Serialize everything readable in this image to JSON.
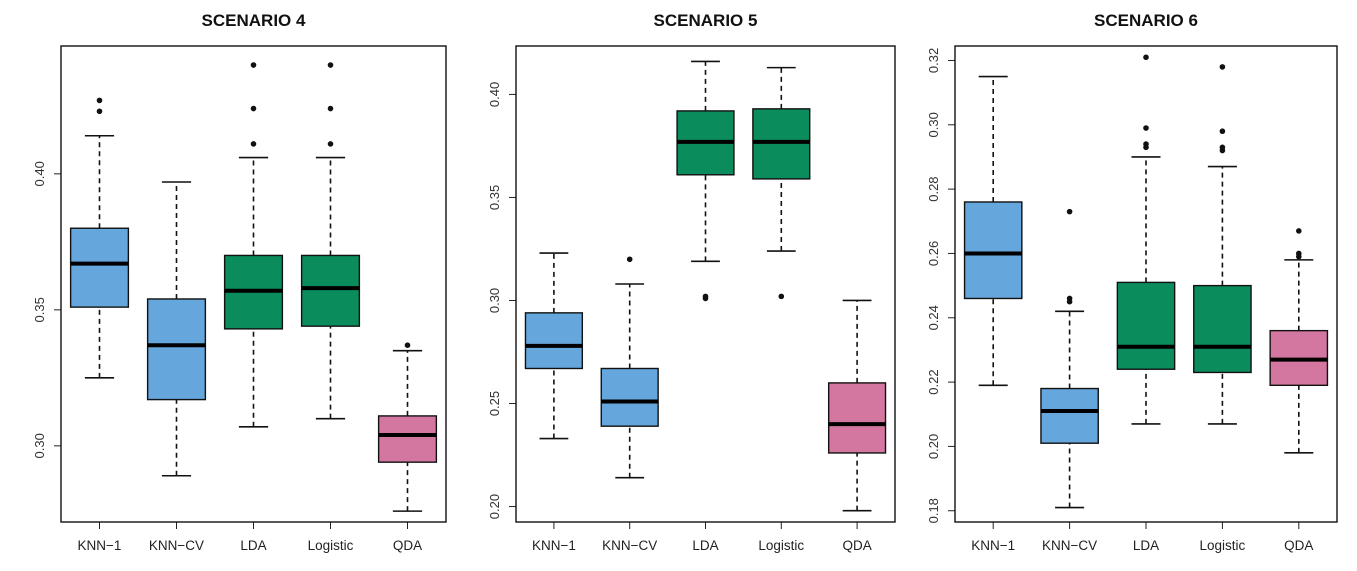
{
  "chart_data": [
    {
      "type": "box",
      "title": "SCENARIO 4",
      "categories": [
        "KNN−1",
        "KNN−CV",
        "LDA",
        "Logistic",
        "QDA"
      ],
      "colors": [
        "#65a6dc",
        "#65a6dc",
        "#0a8c5c",
        "#0a8c5c",
        "#d477a0"
      ],
      "ylim": [
        0.272,
        0.447
      ],
      "yticks": [
        0.3,
        0.35,
        0.4
      ],
      "ytick_labels": [
        "0.30",
        "0.35",
        "0.40"
      ],
      "boxes": [
        {
          "whisker_low": 0.325,
          "q1": 0.351,
          "median": 0.367,
          "q3": 0.38,
          "whisker_high": 0.414,
          "outliers": [
            0.423,
            0.427
          ]
        },
        {
          "whisker_low": 0.289,
          "q1": 0.317,
          "median": 0.337,
          "q3": 0.354,
          "whisker_high": 0.397,
          "outliers": []
        },
        {
          "whisker_low": 0.307,
          "q1": 0.343,
          "median": 0.357,
          "q3": 0.37,
          "whisker_high": 0.406,
          "outliers": [
            0.411,
            0.424,
            0.44
          ]
        },
        {
          "whisker_low": 0.31,
          "q1": 0.344,
          "median": 0.358,
          "q3": 0.37,
          "whisker_high": 0.406,
          "outliers": [
            0.411,
            0.424,
            0.44
          ]
        },
        {
          "whisker_low": 0.276,
          "q1": 0.294,
          "median": 0.304,
          "q3": 0.311,
          "whisker_high": 0.335,
          "outliers": [
            0.337
          ]
        }
      ]
    },
    {
      "type": "box",
      "title": "SCENARIO 5",
      "categories": [
        "KNN−1",
        "KNN−CV",
        "LDA",
        "Logistic",
        "QDA"
      ],
      "colors": [
        "#65a6dc",
        "#65a6dc",
        "#0a8c5c",
        "#0a8c5c",
        "#d477a0"
      ],
      "ylim": [
        0.1925,
        0.4235
      ],
      "yticks": [
        0.2,
        0.25,
        0.3,
        0.35,
        0.4
      ],
      "ytick_labels": [
        "0.20",
        "0.25",
        "0.30",
        "0.35",
        "0.40"
      ],
      "boxes": [
        {
          "whisker_low": 0.233,
          "q1": 0.267,
          "median": 0.278,
          "q3": 0.294,
          "whisker_high": 0.323,
          "outliers": []
        },
        {
          "whisker_low": 0.214,
          "q1": 0.239,
          "median": 0.251,
          "q3": 0.267,
          "whisker_high": 0.308,
          "outliers": [
            0.32
          ]
        },
        {
          "whisker_low": 0.319,
          "q1": 0.361,
          "median": 0.377,
          "q3": 0.392,
          "whisker_high": 0.416,
          "outliers": [
            0.301,
            0.302
          ]
        },
        {
          "whisker_low": 0.324,
          "q1": 0.359,
          "median": 0.377,
          "q3": 0.393,
          "whisker_high": 0.413,
          "outliers": [
            0.302
          ]
        },
        {
          "whisker_low": 0.198,
          "q1": 0.226,
          "median": 0.24,
          "q3": 0.26,
          "whisker_high": 0.3,
          "outliers": []
        }
      ]
    },
    {
      "type": "box",
      "title": "SCENARIO 6",
      "categories": [
        "KNN−1",
        "KNN−CV",
        "LDA",
        "Logistic",
        "QDA"
      ],
      "colors": [
        "#65a6dc",
        "#65a6dc",
        "#0a8c5c",
        "#0a8c5c",
        "#d477a0"
      ],
      "ylim": [
        0.1765,
        0.3245
      ],
      "yticks": [
        0.18,
        0.2,
        0.22,
        0.24,
        0.26,
        0.28,
        0.3,
        0.32
      ],
      "ytick_labels": [
        "0.18",
        "0.20",
        "0.22",
        "0.24",
        "0.26",
        "0.28",
        "0.30",
        "0.32"
      ],
      "boxes": [
        {
          "whisker_low": 0.219,
          "q1": 0.246,
          "median": 0.26,
          "q3": 0.276,
          "whisker_high": 0.315,
          "outliers": []
        },
        {
          "whisker_low": 0.181,
          "q1": 0.201,
          "median": 0.211,
          "q3": 0.218,
          "whisker_high": 0.242,
          "outliers": [
            0.245,
            0.246,
            0.273
          ]
        },
        {
          "whisker_low": 0.207,
          "q1": 0.224,
          "median": 0.231,
          "q3": 0.251,
          "whisker_high": 0.29,
          "outliers": [
            0.293,
            0.294,
            0.299,
            0.321
          ]
        },
        {
          "whisker_low": 0.207,
          "q1": 0.223,
          "median": 0.231,
          "q3": 0.25,
          "whisker_high": 0.287,
          "outliers": [
            0.292,
            0.293,
            0.298,
            0.318
          ]
        },
        {
          "whisker_low": 0.198,
          "q1": 0.219,
          "median": 0.227,
          "q3": 0.236,
          "whisker_high": 0.258,
          "outliers": [
            0.259,
            0.26,
            0.267
          ]
        }
      ]
    }
  ]
}
